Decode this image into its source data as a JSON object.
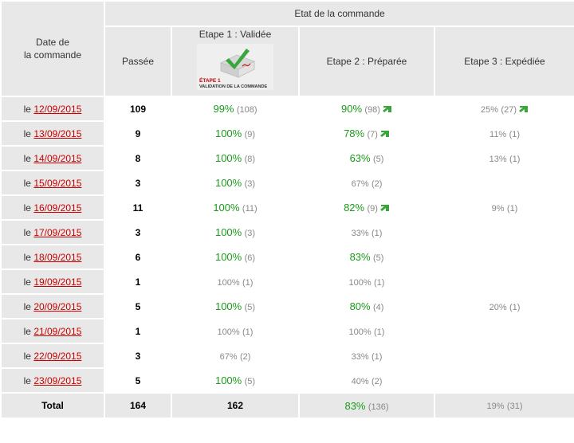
{
  "header": {
    "group_title": "Etat de la commande",
    "date_col": "Date de\nla commande",
    "date_col_line1": "Date de",
    "date_col_line2": "la commande",
    "passee": "Passée",
    "etape1": "Etape 1 : Validée",
    "etape1_badge_line1": "ÉTAPE 1",
    "etape1_badge_line2": "VALIDATION DE LA COMMANDE",
    "etape2": "Etape 2 : Préparée",
    "etape3": "Etape 3 : Expédiée"
  },
  "colors": {
    "green": "#1a9a1a",
    "link": "#cc0000",
    "header_bg": "#e8e8e8"
  },
  "rows": [
    {
      "prefix": "le ",
      "date": "12/09/2015",
      "passee": "109",
      "e1_pct": "99%",
      "e1_cnt": "(108)",
      "e1_hi": true,
      "e2_pct": "90%",
      "e2_cnt": "(98)",
      "e2_hi": true,
      "e2_arrow": true,
      "e3_pct": "25%",
      "e3_cnt": "(27)",
      "e3_hi": false,
      "e3_arrow": true
    },
    {
      "prefix": "le ",
      "date": "13/09/2015",
      "passee": "9",
      "e1_pct": "100%",
      "e1_cnt": "(9)",
      "e1_hi": true,
      "e2_pct": "78%",
      "e2_cnt": "(7)",
      "e2_hi": true,
      "e2_arrow": true,
      "e3_pct": "11%",
      "e3_cnt": "(1)",
      "e3_hi": false,
      "e3_arrow": false
    },
    {
      "prefix": "le ",
      "date": "14/09/2015",
      "passee": "8",
      "e1_pct": "100%",
      "e1_cnt": "(8)",
      "e1_hi": true,
      "e2_pct": "63%",
      "e2_cnt": "(5)",
      "e2_hi": true,
      "e2_arrow": false,
      "e3_pct": "13%",
      "e3_cnt": "(1)",
      "e3_hi": false,
      "e3_arrow": false
    },
    {
      "prefix": "le ",
      "date": "15/09/2015",
      "passee": "3",
      "e1_pct": "100%",
      "e1_cnt": "(3)",
      "e1_hi": true,
      "e2_pct": "67%",
      "e2_cnt": "(2)",
      "e2_hi": false,
      "e2_arrow": false,
      "e3_pct": "",
      "e3_cnt": "",
      "e3_hi": false,
      "e3_arrow": false
    },
    {
      "prefix": "le ",
      "date": "16/09/2015",
      "passee": "11",
      "e1_pct": "100%",
      "e1_cnt": "(11)",
      "e1_hi": true,
      "e2_pct": "82%",
      "e2_cnt": "(9)",
      "e2_hi": true,
      "e2_arrow": true,
      "e3_pct": "9%",
      "e3_cnt": "(1)",
      "e3_hi": false,
      "e3_arrow": false
    },
    {
      "prefix": "le ",
      "date": "17/09/2015",
      "passee": "3",
      "e1_pct": "100%",
      "e1_cnt": "(3)",
      "e1_hi": true,
      "e2_pct": "33%",
      "e2_cnt": "(1)",
      "e2_hi": false,
      "e2_arrow": false,
      "e3_pct": "",
      "e3_cnt": "",
      "e3_hi": false,
      "e3_arrow": false
    },
    {
      "prefix": "le ",
      "date": "18/09/2015",
      "passee": "6",
      "e1_pct": "100%",
      "e1_cnt": "(6)",
      "e1_hi": true,
      "e2_pct": "83%",
      "e2_cnt": "(5)",
      "e2_hi": true,
      "e2_arrow": false,
      "e3_pct": "",
      "e3_cnt": "",
      "e3_hi": false,
      "e3_arrow": false
    },
    {
      "prefix": "le ",
      "date": "19/09/2015",
      "passee": "1",
      "e1_pct": "100%",
      "e1_cnt": "(1)",
      "e1_hi": false,
      "e2_pct": "100%",
      "e2_cnt": "(1)",
      "e2_hi": false,
      "e2_arrow": false,
      "e3_pct": "",
      "e3_cnt": "",
      "e3_hi": false,
      "e3_arrow": false
    },
    {
      "prefix": "le ",
      "date": "20/09/2015",
      "passee": "5",
      "e1_pct": "100%",
      "e1_cnt": "(5)",
      "e1_hi": true,
      "e2_pct": "80%",
      "e2_cnt": "(4)",
      "e2_hi": true,
      "e2_arrow": false,
      "e3_pct": "20%",
      "e3_cnt": "(1)",
      "e3_hi": false,
      "e3_arrow": false
    },
    {
      "prefix": "le ",
      "date": "21/09/2015",
      "passee": "1",
      "e1_pct": "100%",
      "e1_cnt": "(1)",
      "e1_hi": false,
      "e2_pct": "100%",
      "e2_cnt": "(1)",
      "e2_hi": false,
      "e2_arrow": false,
      "e3_pct": "",
      "e3_cnt": "",
      "e3_hi": false,
      "e3_arrow": false
    },
    {
      "prefix": "le ",
      "date": "22/09/2015",
      "passee": "3",
      "e1_pct": "67%",
      "e1_cnt": "(2)",
      "e1_hi": false,
      "e2_pct": "33%",
      "e2_cnt": "(1)",
      "e2_hi": false,
      "e2_arrow": false,
      "e3_pct": "",
      "e3_cnt": "",
      "e3_hi": false,
      "e3_arrow": false
    },
    {
      "prefix": "le ",
      "date": "23/09/2015",
      "passee": "5",
      "e1_pct": "100%",
      "e1_cnt": "(5)",
      "e1_hi": true,
      "e2_pct": "40%",
      "e2_cnt": "(2)",
      "e2_hi": false,
      "e2_arrow": false,
      "e3_pct": "",
      "e3_cnt": "",
      "e3_hi": false,
      "e3_arrow": false
    }
  ],
  "total": {
    "label": "Total",
    "passee": "164",
    "e1": "162",
    "e2_pct": "83%",
    "e2_cnt": "(136)",
    "e3_pct": "19%",
    "e3_cnt": "(31)"
  }
}
